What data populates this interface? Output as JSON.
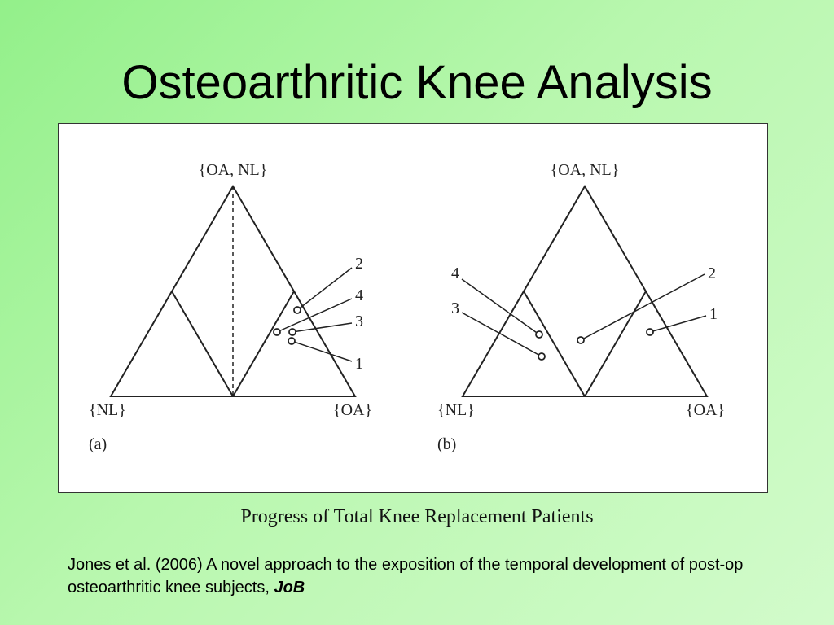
{
  "title": "Osteoarthritic Knee Analysis",
  "panels": [
    {
      "label": "(a)",
      "vertex_top": "{OA, NL}",
      "vertex_left": "{NL}",
      "vertex_right": "{OA}",
      "point_labels": [
        "2",
        "4",
        "3",
        "1"
      ]
    },
    {
      "label": "(b)",
      "vertex_top": "{OA, NL}",
      "vertex_left": "{NL}",
      "vertex_right": "{OA}",
      "point_labels": [
        "4",
        "3",
        "2",
        "1"
      ]
    }
  ],
  "caption": "Progress of Total Knee Replacement Patients",
  "citation": {
    "text": "Jones et al. (2006) A novel approach to the exposition of the temporal development of post-op osteoarthritic knee subjects, ",
    "journal": "JoB"
  }
}
